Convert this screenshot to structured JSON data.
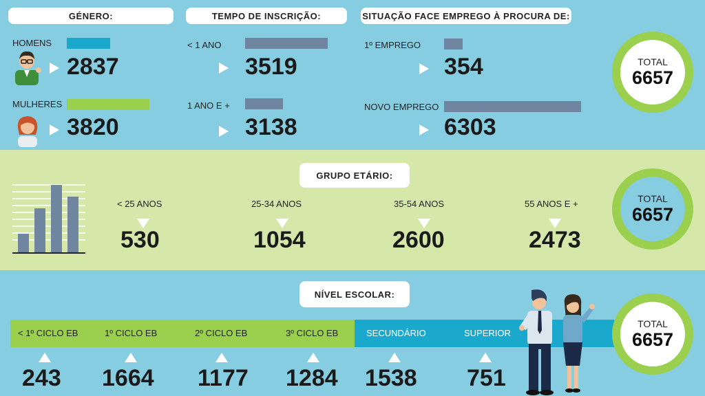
{
  "genero": {
    "title": "Género:",
    "homens_label": "Homens",
    "homens_value": "2837",
    "mulheres_label": "Mulheres",
    "mulheres_value": "3820"
  },
  "tempo": {
    "title": "Tempo de inscrição:",
    "menos_label": "< 1 ano",
    "menos_value": "3519",
    "mais_label": "1 ano e +",
    "mais_value": "3138"
  },
  "situacao": {
    "title": "Situação face emprego à procura de:",
    "primeiro_label": "1º emprego",
    "primeiro_value": "354",
    "novo_label": "Novo emprego",
    "novo_value": "6303"
  },
  "grupo": {
    "title": "Grupo etário:",
    "items": [
      {
        "label": "< 25 anos",
        "value": "530"
      },
      {
        "label": "25-34 anos",
        "value": "1054"
      },
      {
        "label": "35-54 anos",
        "value": "2600"
      },
      {
        "label": "55 anos e +",
        "value": "2473"
      }
    ]
  },
  "nivel": {
    "title": "Nível escolar:",
    "items": [
      {
        "label": "< 1º ciclo EB",
        "value": "243"
      },
      {
        "label": "1º ciclo EB",
        "value": "1664"
      },
      {
        "label": "2º ciclo EB",
        "value": "1177"
      },
      {
        "label": "3º ciclo EB",
        "value": "1284"
      },
      {
        "label": "Secundário",
        "value": "1538"
      },
      {
        "label": "Superior",
        "value": "751"
      }
    ]
  },
  "totals": {
    "label": "Total",
    "value": "6657"
  },
  "colors": {
    "blue_bg": "#87cde2",
    "green_bg": "#d5e8a9",
    "accent_green": "#9bcf4e",
    "cyan_bar": "#1aa9cc",
    "slate_bar": "#70859f",
    "dark_teal": "#0d9ec4"
  }
}
